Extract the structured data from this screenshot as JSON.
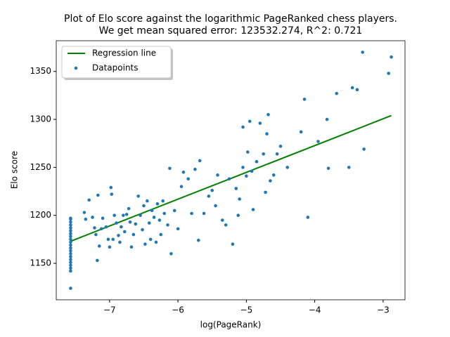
{
  "chart_data": {
    "type": "scatter",
    "title": "Plot of Elo score against the logarithmic PageRanked chess players.",
    "subtitle": "We get mean squared error: 123532.274, R^2: 0.721",
    "x_label": "log(PageRank)",
    "y_label": "Elo score",
    "xlim": [
      -7.78,
      -2.68
    ],
    "ylim": [
      1112,
      1382
    ],
    "xticks": [
      {
        "value": -7,
        "label": "−7"
      },
      {
        "value": -6,
        "label": "−6"
      },
      {
        "value": -5,
        "label": "−5"
      },
      {
        "value": -4,
        "label": "−4"
      },
      {
        "value": -3,
        "label": "−3"
      }
    ],
    "yticks": [
      1150,
      1200,
      1250,
      1300,
      1350
    ],
    "legend": "upper-left",
    "series": [
      {
        "name": "Regression line",
        "color": "#008000",
        "style": "line",
        "x": [
          -7.57,
          -2.88
        ],
        "values": [
          1173,
          1304
        ]
      },
      {
        "name": "Datapoints",
        "color": "#1f77b4",
        "style": "points",
        "x": [
          -7.37,
          -7.35,
          -7.3,
          -7.25,
          -7.22,
          -7.2,
          -7.18,
          -7.17,
          -7.15,
          -7.12,
          -7.1,
          -7.05,
          -7.02,
          -7.0,
          -6.98,
          -6.97,
          -6.95,
          -6.93,
          -6.9,
          -6.87,
          -6.85,
          -6.83,
          -6.8,
          -6.78,
          -6.75,
          -6.72,
          -6.7,
          -6.68,
          -6.65,
          -6.62,
          -6.58,
          -6.55,
          -6.52,
          -6.5,
          -6.48,
          -6.45,
          -6.42,
          -6.4,
          -6.38,
          -6.35,
          -6.32,
          -6.3,
          -6.27,
          -6.25,
          -6.22,
          -6.2,
          -6.15,
          -6.12,
          -6.1,
          -6.05,
          -6.0,
          -5.95,
          -5.92,
          -5.85,
          -5.8,
          -5.75,
          -5.7,
          -5.68,
          -5.62,
          -5.55,
          -5.5,
          -5.45,
          -5.42,
          -5.35,
          -5.3,
          -5.25,
          -5.2,
          -5.15,
          -5.1,
          -5.05,
          -5.0,
          -4.98,
          -4.95,
          -4.9,
          -4.85,
          -4.8,
          -4.75,
          -4.7,
          -4.68,
          -4.65,
          -4.6,
          -4.55,
          -4.5,
          -4.4,
          -4.2,
          -4.15,
          -4.1,
          -3.95,
          -3.82,
          -3.8,
          -3.68,
          -3.5,
          -3.45,
          -3.38,
          -3.3,
          -3.28,
          -2.92,
          -2.88,
          -5.05,
          -4.92,
          -4.72,
          -5.12,
          -7.57,
          -7.57,
          -7.57,
          -7.57,
          -7.57,
          -7.57,
          -7.57,
          -7.57,
          -7.57,
          -7.57,
          -7.57,
          -7.57,
          -7.57,
          -7.57,
          -7.57,
          -7.57,
          -7.57,
          -7.57,
          -7.57,
          -7.57,
          -7.57
        ],
        "values": [
          1203,
          1196,
          1216,
          1198,
          1187,
          1180,
          1153,
          1221,
          1168,
          1186,
          1197,
          1188,
          1175,
          1167,
          1229,
          1222,
          1175,
          1200,
          1192,
          1179,
          1172,
          1188,
          1200,
          1183,
          1201,
          1207,
          1193,
          1167,
          1180,
          1191,
          1220,
          1200,
          1185,
          1210,
          1170,
          1215,
          1192,
          1175,
          1205,
          1198,
          1172,
          1212,
          1195,
          1180,
          1215,
          1202,
          1190,
          1249,
          1160,
          1205,
          1186,
          1230,
          1245,
          1238,
          1202,
          1248,
          1174,
          1257,
          1202,
          1220,
          1226,
          1210,
          1242,
          1195,
          1190,
          1238,
          1170,
          1228,
          1217,
          1250,
          1241,
          1266,
          1298,
          1206,
          1256,
          1296,
          1264,
          1285,
          1305,
          1236,
          1242,
          1264,
          1272,
          1250,
          1287,
          1321,
          1198,
          1277,
          1300,
          1249,
          1327,
          1250,
          1333,
          1331,
          1370,
          1269,
          1348,
          1365,
          1292,
          1246,
          1224,
          1200,
          1124,
          1142,
          1145,
          1148,
          1151,
          1154,
          1157,
          1160,
          1163,
          1166,
          1169,
          1172,
          1175,
          1178,
          1181,
          1184,
          1187,
          1190,
          1193,
          1196,
          1197
        ]
      }
    ]
  }
}
